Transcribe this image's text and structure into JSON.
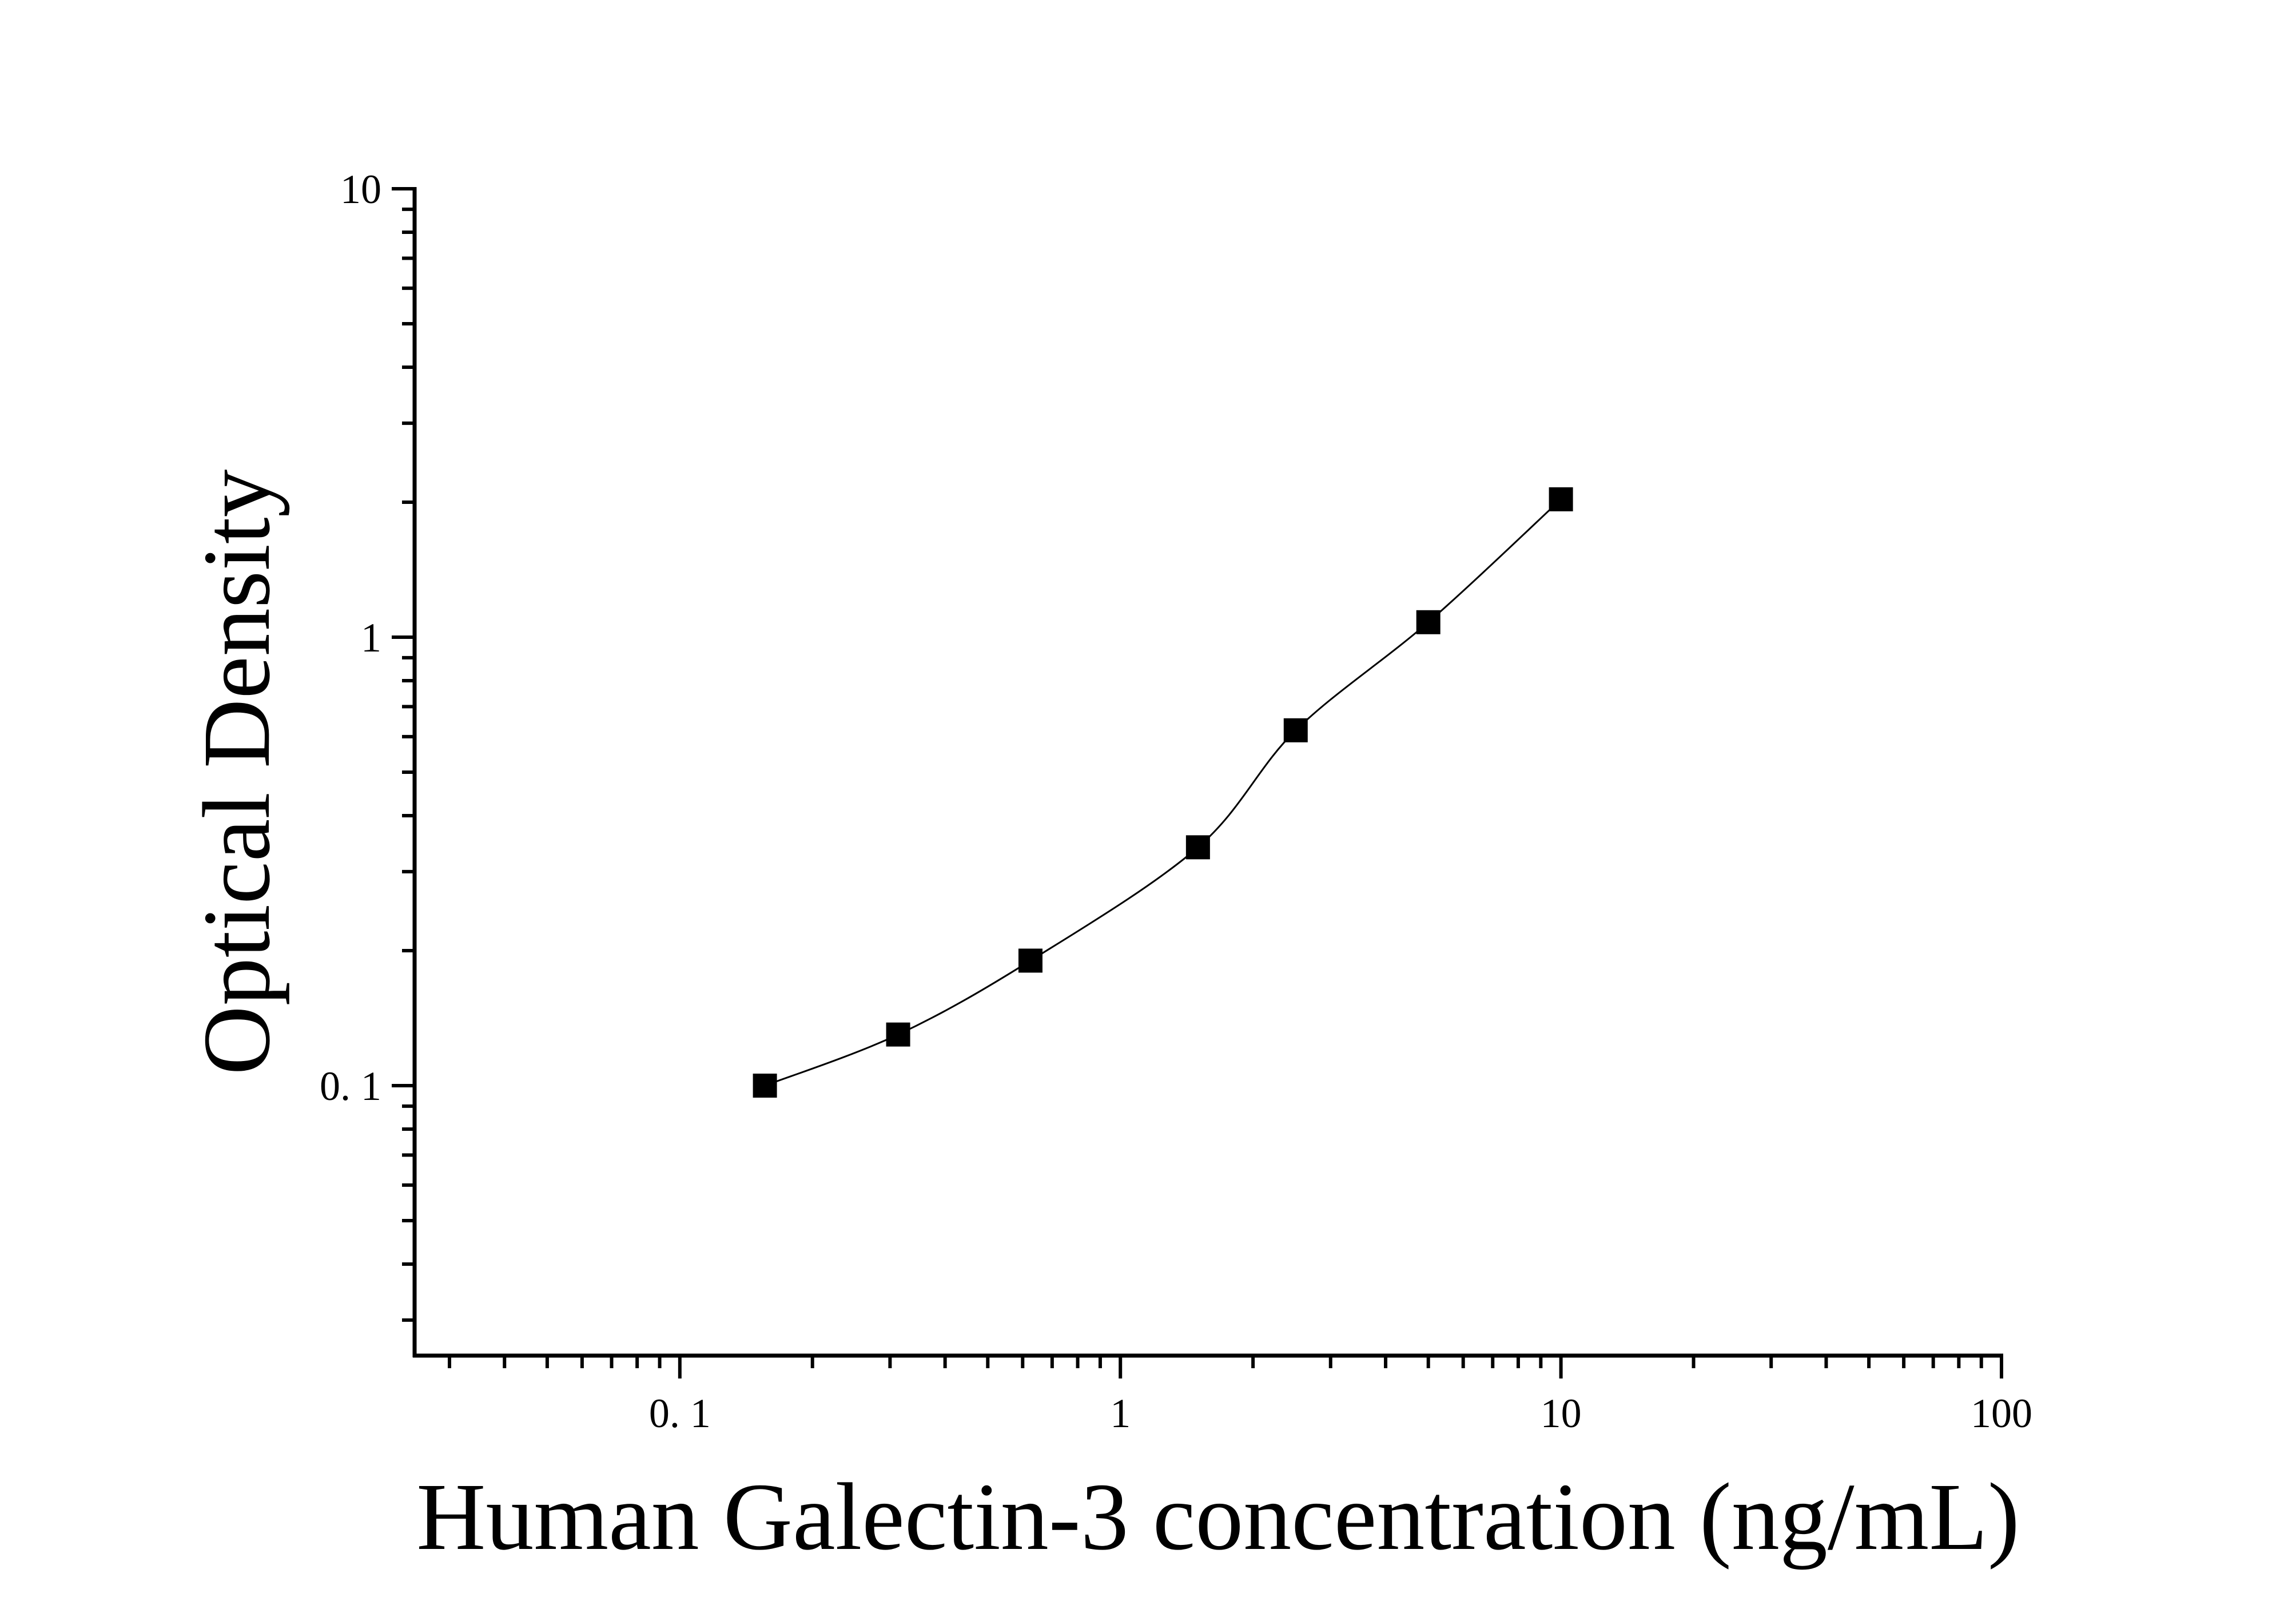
{
  "chart_data": {
    "type": "scatter",
    "xlabel": "Human Galectin-3 concentration (ng/mL)",
    "ylabel": "Optical Density",
    "xscale": "log",
    "yscale": "log",
    "xlim": [
      0.025,
      100
    ],
    "ylim": [
      0.025,
      10
    ],
    "x_ticks": [
      {
        "value": 0.1,
        "label": "0. 1"
      },
      {
        "value": 1,
        "label": "1"
      },
      {
        "value": 10,
        "label": "10"
      },
      {
        "value": 100,
        "label": "100"
      }
    ],
    "y_ticks": [
      {
        "value": 0.1,
        "label": "0. 1"
      },
      {
        "value": 1,
        "label": "1"
      },
      {
        "value": 10,
        "label": "10"
      }
    ],
    "series": [
      {
        "x": [
          0.156,
          0.313,
          0.625,
          1.5,
          2.5,
          5,
          10
        ],
        "y": [
          0.1,
          0.13,
          0.19,
          0.34,
          0.62,
          1.08,
          2.03
        ]
      }
    ],
    "fit_curve": true,
    "grid": false,
    "legend": "none",
    "marker": "square",
    "color": "#000000"
  }
}
